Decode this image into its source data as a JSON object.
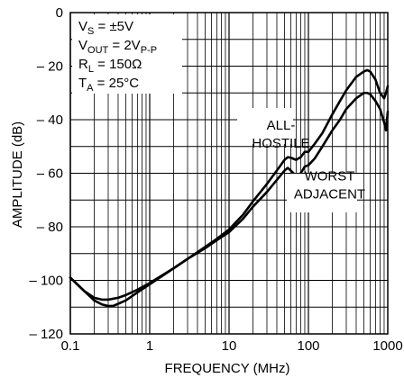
{
  "chart_data": {
    "type": "line",
    "xscale": "log",
    "xlim": [
      0.1,
      1000
    ],
    "ylim": [
      -120,
      0
    ],
    "xlabel": "FREQUENCY (MHz)",
    "ylabel": "AMPLITUDE (dB)",
    "grid": true,
    "x_ticks": [
      {
        "value": 0.1,
        "label": "0.1"
      },
      {
        "value": 1,
        "label": "1"
      },
      {
        "value": 10,
        "label": "10"
      },
      {
        "value": 100,
        "label": "100"
      },
      {
        "value": 1000,
        "label": "1000"
      }
    ],
    "y_ticks": [
      {
        "value": 0,
        "label": "0"
      },
      {
        "value": -20,
        "label": "– 20"
      },
      {
        "value": -40,
        "label": "– 40"
      },
      {
        "value": -60,
        "label": "– 60"
      },
      {
        "value": -80,
        "label": "– 80"
      },
      {
        "value": -100,
        "label": "– 100"
      },
      {
        "value": -120,
        "label": "– 120"
      }
    ],
    "conditions": [
      {
        "main": "V",
        "sub": "S",
        "rest": " = ±5V"
      },
      {
        "main": "V",
        "sub": "OUT",
        "rest": " = 2V",
        "sub2": "P-P"
      },
      {
        "main": "R",
        "sub": "L",
        "rest": " = 150Ω"
      },
      {
        "main": "T",
        "sub": "A",
        "rest": " = 25°C"
      }
    ],
    "series": [
      {
        "label_lines": [
          "ALL-",
          "HOSTILE"
        ],
        "label_anchor": {
          "x": 45,
          "y": -45
        },
        "points": [
          [
            0.1,
            -99
          ],
          [
            0.15,
            -104
          ],
          [
            0.2,
            -106.5
          ],
          [
            0.25,
            -107.2
          ],
          [
            0.3,
            -107.2
          ],
          [
            0.4,
            -106.5
          ],
          [
            0.5,
            -105.5
          ],
          [
            0.7,
            -103.5
          ],
          [
            1,
            -101
          ],
          [
            2,
            -95.5
          ],
          [
            3,
            -92
          ],
          [
            5,
            -87.5
          ],
          [
            7,
            -84.5
          ],
          [
            10,
            -81
          ],
          [
            15,
            -75.5
          ],
          [
            20,
            -70.5
          ],
          [
            30,
            -64
          ],
          [
            40,
            -59
          ],
          [
            50,
            -55
          ],
          [
            55,
            -54
          ],
          [
            60,
            -54.2
          ],
          [
            70,
            -55
          ],
          [
            80,
            -54
          ],
          [
            90,
            -52
          ],
          [
            100,
            -52
          ],
          [
            120,
            -49
          ],
          [
            150,
            -45
          ],
          [
            200,
            -38
          ],
          [
            250,
            -33
          ],
          [
            300,
            -29
          ],
          [
            400,
            -24
          ],
          [
            500,
            -22
          ],
          [
            550,
            -21.5
          ],
          [
            600,
            -22
          ],
          [
            700,
            -25
          ],
          [
            800,
            -30
          ],
          [
            900,
            -32
          ],
          [
            950,
            -30
          ],
          [
            1000,
            -27.5
          ]
        ]
      },
      {
        "label_lines": [
          "WORST",
          "ADJACENT"
        ],
        "label_anchor": {
          "x": 185,
          "y": -64
        },
        "points": [
          [
            0.1,
            -99
          ],
          [
            0.15,
            -104
          ],
          [
            0.2,
            -107.5
          ],
          [
            0.25,
            -109
          ],
          [
            0.3,
            -109.6
          ],
          [
            0.35,
            -109.5
          ],
          [
            0.5,
            -107.5
          ],
          [
            0.7,
            -104.5
          ],
          [
            1,
            -101.5
          ],
          [
            2,
            -95.5
          ],
          [
            3,
            -92
          ],
          [
            5,
            -88
          ],
          [
            7,
            -85
          ],
          [
            10,
            -82
          ],
          [
            15,
            -77
          ],
          [
            20,
            -72.5
          ],
          [
            30,
            -67
          ],
          [
            40,
            -62.5
          ],
          [
            50,
            -59
          ],
          [
            55,
            -58
          ],
          [
            60,
            -59
          ],
          [
            70,
            -61
          ],
          [
            80,
            -60
          ],
          [
            90,
            -57.5
          ],
          [
            100,
            -57
          ],
          [
            120,
            -54.5
          ],
          [
            150,
            -50
          ],
          [
            200,
            -44
          ],
          [
            250,
            -40
          ],
          [
            300,
            -36
          ],
          [
            400,
            -32
          ],
          [
            500,
            -30
          ],
          [
            550,
            -30
          ],
          [
            600,
            -30.5
          ],
          [
            700,
            -33
          ],
          [
            800,
            -36
          ],
          [
            900,
            -41
          ],
          [
            950,
            -44
          ],
          [
            1000,
            -37
          ]
        ]
      }
    ]
  }
}
